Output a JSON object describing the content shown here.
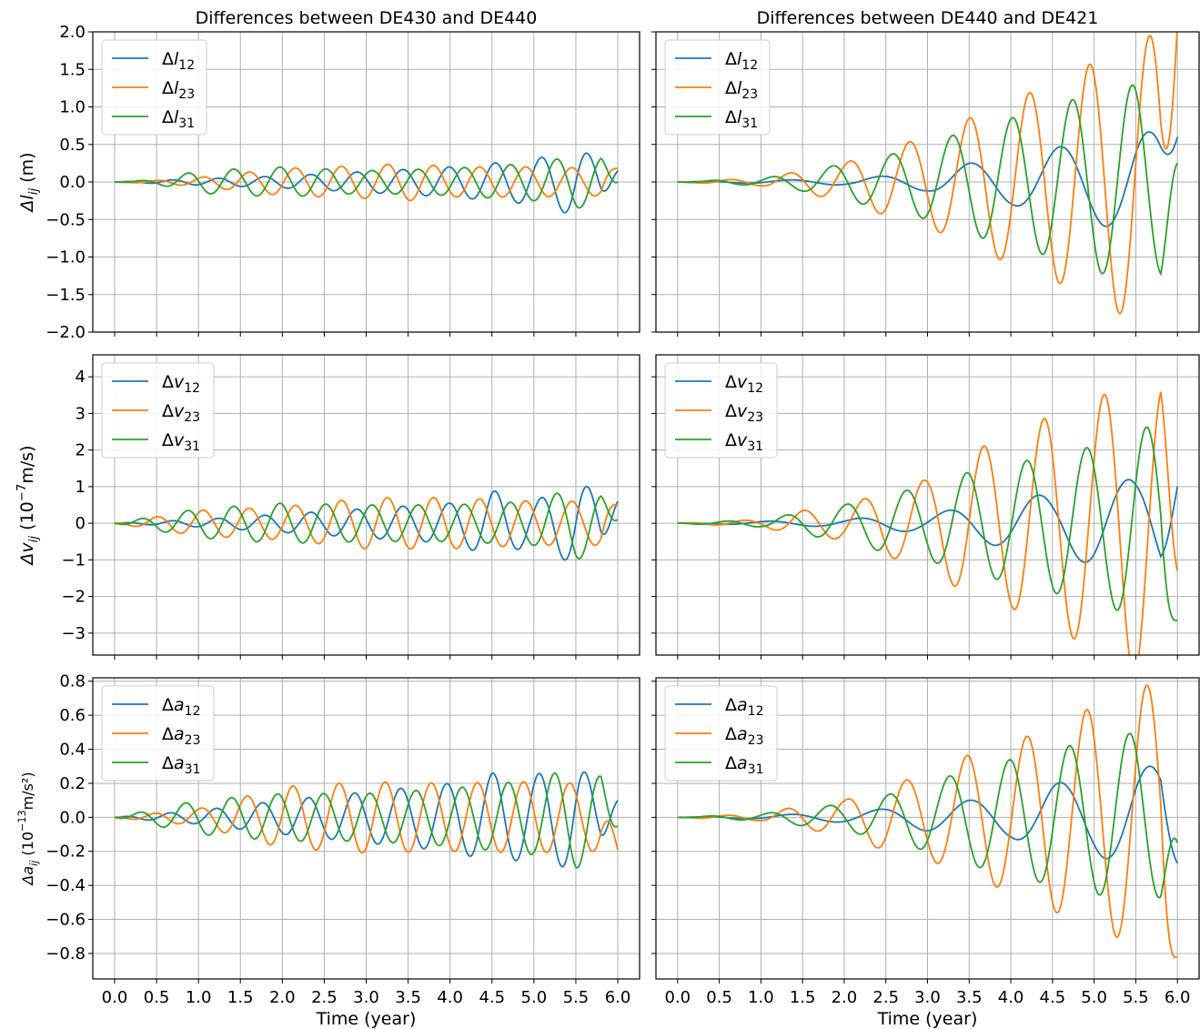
{
  "figure": {
    "col_titles": [
      "Differences between DE430 and DE440",
      "Differences between DE440 and DE421"
    ],
    "xlabel": "Time (year)",
    "row_ylabels": [
      {
        "base": "Δl",
        "sub": "ij",
        "unit": " (m)",
        "sup": ""
      },
      {
        "base": "Δv",
        "sub": "ij",
        "unit": " (10",
        "sup": "−7",
        "unit2": "m/s)"
      },
      {
        "base": "Δa",
        "sub": "ij",
        "unit": " (10",
        "sup": "−13",
        "unit2": "m/s²)"
      }
    ]
  },
  "colors": {
    "series_12": "#1f77b4",
    "series_23": "#ff7f0e",
    "series_31": "#2ca02c",
    "grid": "#b0b0b0"
  },
  "chart_data": [
    {
      "type": "line",
      "row": 0,
      "col": 0,
      "title": "Differences between DE430 and DE440",
      "xlabel": "",
      "ylabel": "Δl_ij (m)",
      "xlim": [
        0,
        6
      ],
      "ylim": [
        -2.0,
        2.0
      ],
      "xticks": [
        0.0,
        0.5,
        1.0,
        1.5,
        2.0,
        2.5,
        3.0,
        3.5,
        4.0,
        4.5,
        5.0,
        5.5,
        6.0
      ],
      "yticks": [
        -2.0,
        -1.5,
        -1.0,
        -0.5,
        0.0,
        0.5,
        1.0,
        1.5,
        2.0
      ],
      "ytick_labels": [
        "−2.0",
        "−1.5",
        "−1.0",
        "−0.5",
        "0.0",
        "0.5",
        "1.0",
        "1.5",
        "2.0"
      ],
      "legend": "top-left",
      "grid": true,
      "series": [
        {
          "name": "Δl_12",
          "period": 0.55,
          "phase": 0.0,
          "envelope": [
            [
              0,
              0
            ],
            [
              0.5,
              0.02
            ],
            [
              1,
              0.04
            ],
            [
              2,
              0.08
            ],
            [
              3,
              0.14
            ],
            [
              4,
              0.2
            ],
            [
              5,
              0.3
            ],
            [
              5.5,
              0.45
            ],
            [
              6,
              0.2
            ]
          ],
          "end": 0.15
        },
        {
          "name": "Δl_23",
          "period": 0.55,
          "phase": 2.1,
          "envelope": [
            [
              0,
              0
            ],
            [
              0.5,
              0.02
            ],
            [
              1,
              0.06
            ],
            [
              2,
              0.18
            ],
            [
              3,
              0.22
            ],
            [
              3.5,
              0.25
            ],
            [
              4,
              0.2
            ],
            [
              5,
              0.2
            ],
            [
              6,
              0.18
            ]
          ],
          "end": 0.18
        },
        {
          "name": "Δl_31",
          "period": 0.55,
          "phase": 4.2,
          "envelope": [
            [
              0,
              0
            ],
            [
              0.5,
              0.03
            ],
            [
              1,
              0.15
            ],
            [
              2,
              0.2
            ],
            [
              3,
              0.15
            ],
            [
              4,
              0.18
            ],
            [
              5,
              0.25
            ],
            [
              5.5,
              0.35
            ],
            [
              6,
              0.3
            ]
          ],
          "end": 0.0
        }
      ]
    },
    {
      "type": "line",
      "row": 0,
      "col": 1,
      "title": "Differences between DE440 and DE421",
      "xlabel": "",
      "ylabel": "",
      "xlim": [
        0,
        6
      ],
      "ylim": [
        -2.0,
        2.0
      ],
      "xticks": [
        0.0,
        0.5,
        1.0,
        1.5,
        2.0,
        2.5,
        3.0,
        3.5,
        4.0,
        4.5,
        5.0,
        5.5,
        6.0
      ],
      "legend": "top-left",
      "grid": true,
      "series": [
        {
          "name": "Δl_12",
          "period": 1.08,
          "phase": 0.0,
          "envelope": [
            [
              0,
              0
            ],
            [
              1,
              0.02
            ],
            [
              2,
              0.04
            ],
            [
              2.5,
              0.08
            ],
            [
              3,
              0.12
            ],
            [
              3.5,
              0.25
            ],
            [
              4,
              0.3
            ],
            [
              4.5,
              0.45
            ],
            [
              5,
              0.55
            ],
            [
              5.5,
              0.7
            ],
            [
              6,
              0.6
            ]
          ],
          "end": 0.6
        },
        {
          "name": "Δl_23",
          "period": 0.72,
          "phase": 2.4,
          "envelope": [
            [
              0,
              0
            ],
            [
              1,
              0.05
            ],
            [
              1.5,
              0.15
            ],
            [
              2,
              0.25
            ],
            [
              2.5,
              0.45
            ],
            [
              3,
              0.6
            ],
            [
              3.5,
              0.85
            ],
            [
              4,
              1.1
            ],
            [
              4.5,
              1.3
            ],
            [
              5,
              1.6
            ],
            [
              5.5,
              1.85
            ],
            [
              6,
              2.15
            ]
          ],
          "end": 2.1
        },
        {
          "name": "Δl_31",
          "period": 0.72,
          "phase": 4.2,
          "envelope": [
            [
              0,
              0
            ],
            [
              1,
              0.05
            ],
            [
              1.5,
              0.12
            ],
            [
              2,
              0.25
            ],
            [
              2.5,
              0.35
            ],
            [
              3,
              0.5
            ],
            [
              3.5,
              0.7
            ],
            [
              4,
              0.85
            ],
            [
              4.5,
              1.0
            ],
            [
              5,
              1.2
            ],
            [
              5.5,
              1.3
            ],
            [
              6,
              1.2
            ]
          ],
          "end": 0.25
        }
      ]
    },
    {
      "type": "line",
      "row": 1,
      "col": 0,
      "title": "",
      "xlabel": "",
      "ylabel": "Δv_ij (10^-7 m/s)",
      "xlim": [
        0,
        6
      ],
      "ylim": [
        -3.6,
        4.6
      ],
      "xticks": [
        0.0,
        0.5,
        1.0,
        1.5,
        2.0,
        2.5,
        3.0,
        3.5,
        4.0,
        4.5,
        5.0,
        5.5,
        6.0
      ],
      "yticks": [
        -3,
        -2,
        -1,
        0,
        1,
        2,
        3,
        4
      ],
      "ytick_labels": [
        "−3",
        "−2",
        "−1",
        "0",
        "1",
        "2",
        "3",
        "4"
      ],
      "legend": "top-left",
      "grid": true,
      "series": [
        {
          "name": "Δv_12",
          "period": 0.55,
          "phase": 0.0,
          "envelope": [
            [
              0,
              0
            ],
            [
              1,
              0.1
            ],
            [
              2,
              0.25
            ],
            [
              3,
              0.4
            ],
            [
              4,
              0.55
            ],
            [
              4.5,
              0.9
            ],
            [
              5,
              0.6
            ],
            [
              5.5,
              1.15
            ],
            [
              6,
              0.6
            ]
          ],
          "end": 0.6
        },
        {
          "name": "Δv_23",
          "period": 0.55,
          "phase": 2.1,
          "envelope": [
            [
              0,
              0
            ],
            [
              1,
              0.35
            ],
            [
              2,
              0.45
            ],
            [
              3,
              0.7
            ],
            [
              4,
              0.7
            ],
            [
              4.5,
              0.65
            ],
            [
              5,
              0.6
            ],
            [
              5.5,
              0.6
            ],
            [
              6,
              0.6
            ]
          ],
          "end": 0.5
        },
        {
          "name": "Δv_31",
          "period": 0.55,
          "phase": 4.2,
          "envelope": [
            [
              0,
              0
            ],
            [
              1,
              0.4
            ],
            [
              2,
              0.55
            ],
            [
              3,
              0.5
            ],
            [
              4,
              0.5
            ],
            [
              5,
              0.6
            ],
            [
              5.5,
              1.0
            ],
            [
              6,
              0.6
            ]
          ],
          "end": 0.1
        }
      ]
    },
    {
      "type": "line",
      "row": 1,
      "col": 1,
      "title": "",
      "xlabel": "",
      "ylabel": "",
      "xlim": [
        0,
        6
      ],
      "ylim": [
        -3.6,
        4.6
      ],
      "xticks": [
        0.0,
        0.5,
        1.0,
        1.5,
        2.0,
        2.5,
        3.0,
        3.5,
        4.0,
        4.5,
        5.0,
        5.5,
        6.0
      ],
      "legend": "top-left",
      "grid": true,
      "series": [
        {
          "name": "Δv_12",
          "period": 1.08,
          "phase": 1.5,
          "envelope": [
            [
              0,
              0
            ],
            [
              1,
              0.05
            ],
            [
              2,
              0.1
            ],
            [
              2.5,
              0.2
            ],
            [
              3,
              0.25
            ],
            [
              3.5,
              0.45
            ],
            [
              4,
              0.7
            ],
            [
              4.5,
              0.8
            ],
            [
              5,
              1.15
            ],
            [
              5.5,
              1.2
            ],
            [
              6,
              1.6
            ]
          ],
          "end": 1.0
        },
        {
          "name": "Δv_23",
          "period": 0.72,
          "phase": 0.9,
          "envelope": [
            [
              0,
              0
            ],
            [
              1,
              0.1
            ],
            [
              1.5,
              0.35
            ],
            [
              2,
              0.45
            ],
            [
              2.5,
              0.9
            ],
            [
              3,
              1.2
            ],
            [
              3.5,
              2.0
            ],
            [
              4,
              2.3
            ],
            [
              4.5,
              3.0
            ],
            [
              5,
              3.3
            ],
            [
              5.5,
              4.2
            ],
            [
              6,
              3.5
            ]
          ],
          "end": -1.3
        },
        {
          "name": "Δv_31",
          "period": 0.72,
          "phase": 2.7,
          "envelope": [
            [
              0,
              0
            ],
            [
              1,
              0.1
            ],
            [
              1.5,
              0.3
            ],
            [
              2,
              0.5
            ],
            [
              2.5,
              0.8
            ],
            [
              3,
              1.0
            ],
            [
              3.5,
              1.4
            ],
            [
              4,
              1.6
            ],
            [
              4.5,
              1.9
            ],
            [
              5,
              2.1
            ],
            [
              5.5,
              2.6
            ],
            [
              6,
              2.7
            ]
          ],
          "end": -2.65
        }
      ]
    },
    {
      "type": "line",
      "row": 2,
      "col": 0,
      "title": "",
      "xlabel": "Time (year)",
      "ylabel": "Δa_ij (10^-13 m/s^2)",
      "xlim": [
        0,
        6
      ],
      "ylim": [
        -0.95,
        0.82
      ],
      "xticks": [
        0.0,
        0.5,
        1.0,
        1.5,
        2.0,
        2.5,
        3.0,
        3.5,
        4.0,
        4.5,
        5.0,
        5.5,
        6.0
      ],
      "xtick_labels": [
        "0.0",
        "0.5",
        "1.0",
        "1.5",
        "2.0",
        "2.5",
        "3.0",
        "3.5",
        "4.0",
        "4.5",
        "5.0",
        "5.5",
        "6.0"
      ],
      "yticks": [
        -0.8,
        -0.6,
        -0.4,
        -0.2,
        0.0,
        0.2,
        0.4,
        0.6,
        0.8
      ],
      "ytick_labels": [
        "−0.8",
        "−0.6",
        "−0.4",
        "−0.2",
        "0.0",
        "0.2",
        "0.4",
        "0.6",
        "0.8"
      ],
      "legend": "top-left",
      "grid": true,
      "series": [
        {
          "name": "Δa_12",
          "period": 0.55,
          "phase": 0.3,
          "envelope": [
            [
              0,
              0
            ],
            [
              1,
              0.04
            ],
            [
              2,
              0.1
            ],
            [
              3,
              0.15
            ],
            [
              4,
              0.2
            ],
            [
              4.5,
              0.26
            ],
            [
              5,
              0.25
            ],
            [
              5.5,
              0.31
            ],
            [
              6,
              0.1
            ]
          ],
          "end": 0.1
        },
        {
          "name": "Δa_23",
          "period": 0.55,
          "phase": 2.4,
          "envelope": [
            [
              0,
              0
            ],
            [
              1,
              0.05
            ],
            [
              2,
              0.18
            ],
            [
              3,
              0.21
            ],
            [
              4,
              0.2
            ],
            [
              5,
              0.21
            ],
            [
              5.5,
              0.2
            ],
            [
              6,
              0.2
            ]
          ],
          "end": -0.19
        },
        {
          "name": "Δa_31",
          "period": 0.55,
          "phase": 4.5,
          "envelope": [
            [
              0,
              0
            ],
            [
              1,
              0.1
            ],
            [
              2,
              0.14
            ],
            [
              3,
              0.14
            ],
            [
              4,
              0.17
            ],
            [
              5,
              0.22
            ],
            [
              5.5,
              0.3
            ],
            [
              6,
              0.2
            ]
          ],
          "end": -0.05
        }
      ]
    },
    {
      "type": "line",
      "row": 2,
      "col": 1,
      "title": "",
      "xlabel": "Time (year)",
      "ylabel": "",
      "xlim": [
        0,
        6
      ],
      "ylim": [
        -0.95,
        0.82
      ],
      "xticks": [
        0.0,
        0.5,
        1.0,
        1.5,
        2.0,
        2.5,
        3.0,
        3.5,
        4.0,
        4.5,
        5.0,
        5.5,
        6.0
      ],
      "xtick_labels": [
        "0.0",
        "0.5",
        "1.0",
        "1.5",
        "2.0",
        "2.5",
        "3.0",
        "3.5",
        "4.0",
        "4.5",
        "5.0",
        "5.5",
        "6.0"
      ],
      "legend": "top-left",
      "grid": true,
      "series": [
        {
          "name": "Δa_12",
          "period": 1.08,
          "phase": 0.0,
          "envelope": [
            [
              0,
              0
            ],
            [
              1,
              0.01
            ],
            [
              2,
              0.03
            ],
            [
              2.5,
              0.05
            ],
            [
              3,
              0.08
            ],
            [
              3.5,
              0.1
            ],
            [
              4,
              0.12
            ],
            [
              4.5,
              0.2
            ],
            [
              5,
              0.22
            ],
            [
              5.5,
              0.3
            ],
            [
              6,
              0.3
            ]
          ],
          "end": -0.27
        },
        {
          "name": "Δa_23",
          "period": 0.72,
          "phase": 2.7,
          "envelope": [
            [
              0,
              0
            ],
            [
              1,
              0.02
            ],
            [
              1.5,
              0.07
            ],
            [
              2,
              0.1
            ],
            [
              2.5,
              0.2
            ],
            [
              3,
              0.24
            ],
            [
              3.5,
              0.37
            ],
            [
              4,
              0.43
            ],
            [
              4.5,
              0.55
            ],
            [
              5,
              0.65
            ],
            [
              5.5,
              0.75
            ],
            [
              6,
              0.85
            ]
          ],
          "end": -0.82
        },
        {
          "name": "Δa_31",
          "period": 0.72,
          "phase": 4.5,
          "envelope": [
            [
              0,
              0
            ],
            [
              1,
              0.02
            ],
            [
              1.5,
              0.05
            ],
            [
              2,
              0.08
            ],
            [
              2.5,
              0.13
            ],
            [
              3,
              0.2
            ],
            [
              3.5,
              0.28
            ],
            [
              4,
              0.34
            ],
            [
              4.5,
              0.4
            ],
            [
              5,
              0.45
            ],
            [
              5.5,
              0.5
            ],
            [
              6,
              0.45
            ]
          ],
          "end": -0.15
        }
      ]
    }
  ]
}
